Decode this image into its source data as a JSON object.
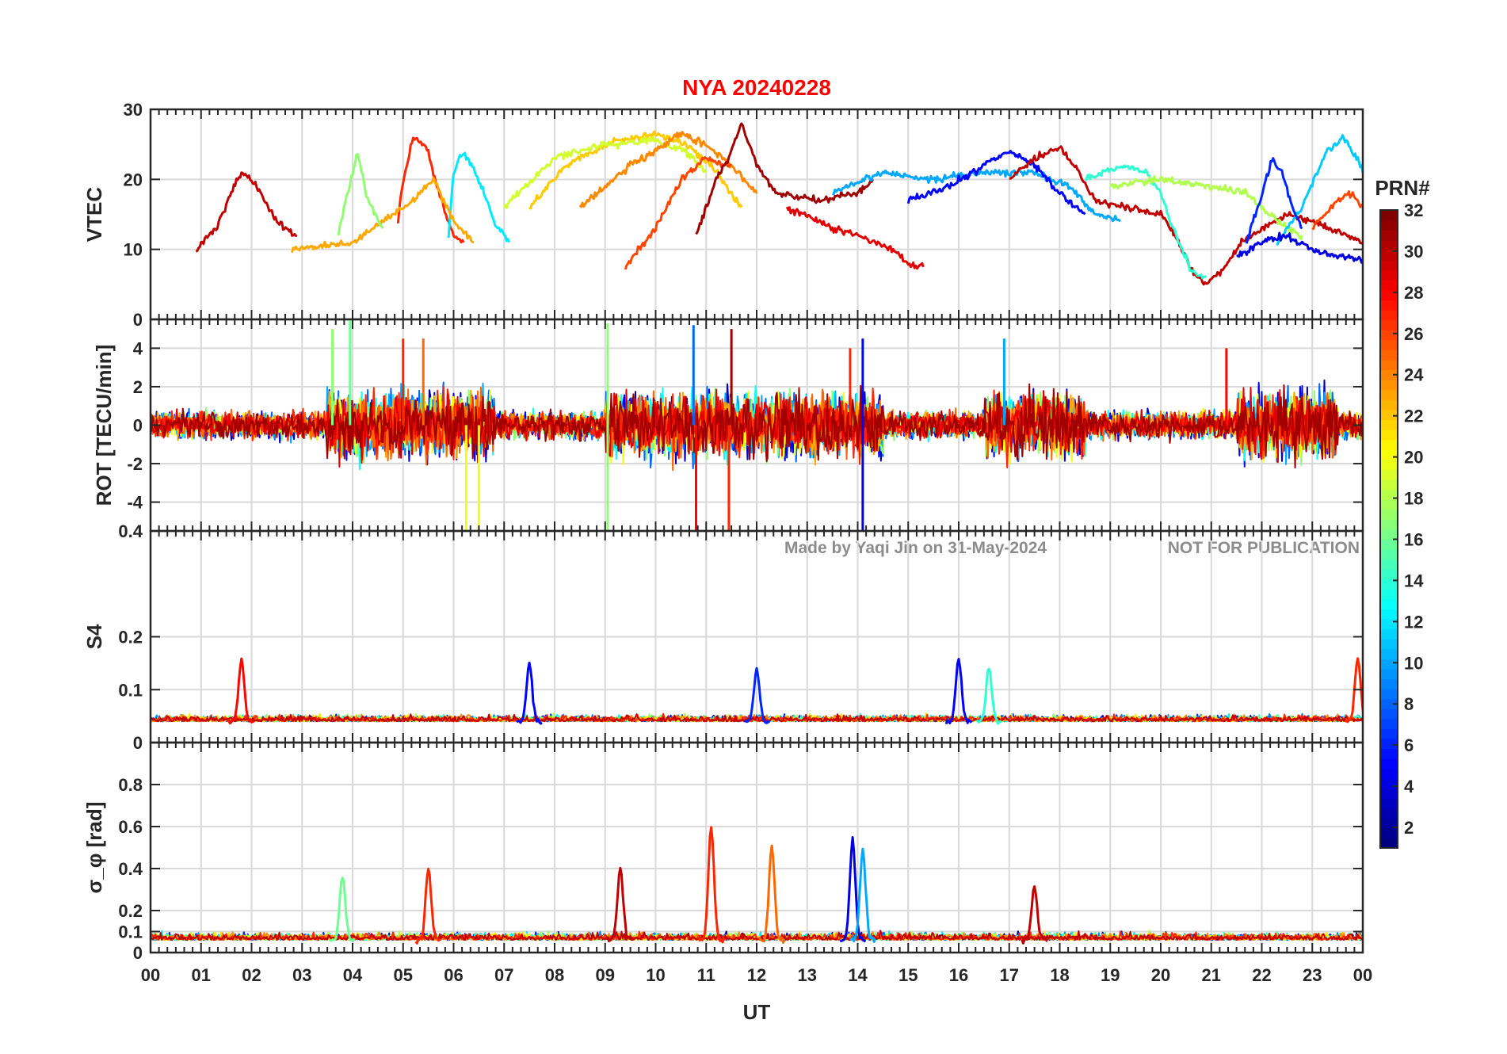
{
  "chart_data": {
    "type": "line",
    "title": "NYA   20240228",
    "xlabel": "UT",
    "xlim": [
      0,
      24
    ],
    "x_ticks": [
      "00",
      "01",
      "02",
      "03",
      "04",
      "05",
      "06",
      "07",
      "08",
      "09",
      "10",
      "11",
      "12",
      "13",
      "14",
      "15",
      "16",
      "17",
      "18",
      "19",
      "20",
      "21",
      "22",
      "23",
      "00"
    ],
    "grid": true,
    "watermark": "Made by Yaqi Jin on 31-May-2024",
    "notice": "NOT FOR PUBLICATION",
    "colorbar": {
      "label": "PRN#",
      "range": [
        1,
        32
      ],
      "colormap": "jet",
      "tick_labels": [
        "2",
        "4",
        "6",
        "8",
        "10",
        "12",
        "14",
        "16",
        "18",
        "20",
        "22",
        "24",
        "26",
        "28",
        "30",
        "32"
      ]
    },
    "panels": [
      {
        "id": "vtec",
        "ylabel": "VTEC",
        "ylim": [
          0,
          30
        ],
        "y_ticks": [
          "0",
          "10",
          "20",
          "30"
        ],
        "series": [
          {
            "prn": 30,
            "points": [
              [
                0.9,
                10
              ],
              [
                1.3,
                13
              ],
              [
                1.6,
                18
              ],
              [
                1.8,
                21
              ],
              [
                2.1,
                19
              ],
              [
                2.5,
                14
              ],
              [
                2.9,
                12
              ]
            ]
          },
          {
            "prn": 27,
            "points": [
              [
                4.9,
                14
              ],
              [
                5.0,
                20
              ],
              [
                5.2,
                26
              ],
              [
                5.45,
                25
              ],
              [
                5.6,
                21
              ],
              [
                5.8,
                16
              ],
              [
                6.0,
                12
              ],
              [
                6.2,
                11
              ]
            ]
          },
          {
            "prn": 12,
            "points": [
              [
                5.9,
                12
              ],
              [
                6.0,
                21
              ],
              [
                6.2,
                24
              ],
              [
                6.5,
                20
              ],
              [
                6.8,
                14
              ],
              [
                7.1,
                11
              ]
            ]
          },
          {
            "prn": 23,
            "points": [
              [
                2.8,
                10
              ],
              [
                4.0,
                11
              ],
              [
                5.2,
                17
              ],
              [
                5.6,
                20
              ],
              [
                6.0,
                14
              ],
              [
                6.4,
                11
              ]
            ]
          },
          {
            "prn": 17,
            "points": [
              [
                3.7,
                12
              ],
              [
                3.9,
                18
              ],
              [
                4.1,
                24
              ],
              [
                4.3,
                17
              ],
              [
                4.6,
                13
              ]
            ]
          },
          {
            "prn": 22,
            "points": [
              [
                7.5,
                16
              ],
              [
                8.2,
                22
              ],
              [
                9.2,
                25.5
              ],
              [
                10.0,
                26.5
              ],
              [
                10.6,
                25
              ],
              [
                11.1,
                22
              ],
              [
                11.7,
                16
              ]
            ]
          },
          {
            "prn": 19,
            "points": [
              [
                7.0,
                16
              ],
              [
                8.0,
                23
              ],
              [
                9.0,
                25
              ],
              [
                10.0,
                25.5
              ],
              [
                10.6,
                24
              ],
              [
                11.0,
                21
              ]
            ]
          },
          {
            "prn": 24,
            "points": [
              [
                8.5,
                16
              ],
              [
                9.5,
                22
              ],
              [
                10.0,
                24
              ],
              [
                10.5,
                26.5
              ],
              [
                11.0,
                25
              ],
              [
                11.5,
                22
              ],
              [
                12.0,
                18
              ]
            ]
          },
          {
            "prn": 26,
            "points": [
              [
                9.4,
                7.5
              ],
              [
                10.0,
                13
              ],
              [
                10.5,
                20
              ],
              [
                11.0,
                23
              ],
              [
                11.5,
                22
              ]
            ]
          },
          {
            "prn": 31,
            "points": [
              [
                10.8,
                12
              ],
              [
                11.2,
                20
              ],
              [
                11.5,
                24
              ],
              [
                11.7,
                28
              ],
              [
                12.0,
                22
              ],
              [
                12.4,
                18
              ],
              [
                13.2,
                17
              ],
              [
                14.0,
                18
              ],
              [
                14.3,
                20
              ]
            ]
          },
          {
            "prn": 29,
            "points": [
              [
                12.6,
                16
              ],
              [
                13.5,
                13
              ],
              [
                14.0,
                12
              ],
              [
                14.7,
                10
              ],
              [
                15.0,
                8
              ],
              [
                15.3,
                7.5
              ]
            ]
          },
          {
            "prn": 10,
            "points": [
              [
                13.5,
                18
              ],
              [
                14.5,
                21
              ],
              [
                15.5,
                20
              ],
              [
                16.5,
                21
              ],
              [
                17.5,
                21
              ],
              [
                18.2,
                19
              ],
              [
                18.7,
                15
              ],
              [
                19.2,
                14
              ]
            ]
          },
          {
            "prn": 5,
            "points": [
              [
                15.0,
                17
              ],
              [
                15.8,
                19
              ],
              [
                16.5,
                22
              ],
              [
                17.0,
                24
              ],
              [
                17.5,
                22
              ],
              [
                18.0,
                18
              ],
              [
                18.5,
                15
              ]
            ]
          },
          {
            "prn": 30,
            "points": [
              [
                17.0,
                20
              ],
              [
                17.5,
                23
              ],
              [
                18.0,
                24.5
              ],
              [
                18.3,
                22
              ],
              [
                18.7,
                17
              ],
              [
                19.3,
                16
              ],
              [
                20.0,
                15
              ],
              [
                20.3,
                12
              ],
              [
                20.6,
                7
              ],
              [
                20.9,
                5
              ],
              [
                21.2,
                7
              ],
              [
                21.6,
                11
              ],
              [
                22.0,
                13
              ],
              [
                22.5,
                15
              ],
              [
                23.0,
                14
              ],
              [
                24.0,
                11
              ]
            ]
          },
          {
            "prn": 14,
            "points": [
              [
                18.5,
                20
              ],
              [
                19.2,
                22
              ],
              [
                19.7,
                21
              ],
              [
                20.0,
                18
              ],
              [
                20.3,
                12
              ],
              [
                20.6,
                7
              ],
              [
                20.9,
                6
              ]
            ]
          },
          {
            "prn": 18,
            "points": [
              [
                19.0,
                19
              ],
              [
                20.0,
                20
              ],
              [
                21.0,
                19
              ],
              [
                21.7,
                18
              ],
              [
                22.3,
                14
              ],
              [
                22.8,
                12
              ]
            ]
          },
          {
            "prn": 11,
            "points": [
              [
                22.3,
                11
              ],
              [
                22.8,
                16
              ],
              [
                23.1,
                21
              ],
              [
                23.3,
                24
              ],
              [
                23.6,
                26
              ],
              [
                23.9,
                23
              ],
              [
                24.0,
                21
              ]
            ]
          },
          {
            "prn": 26,
            "points": [
              [
                23.0,
                13
              ],
              [
                23.5,
                17
              ],
              [
                23.8,
                18
              ],
              [
                24.0,
                16
              ]
            ]
          },
          {
            "prn": 4,
            "points": [
              [
                21.5,
                9
              ],
              [
                22.0,
                11
              ],
              [
                22.5,
                12
              ],
              [
                23.0,
                10
              ],
              [
                23.5,
                9
              ],
              [
                24.0,
                8.5
              ]
            ]
          },
          {
            "prn": 6,
            "points": [
              [
                21.7,
                11
              ],
              [
                22.0,
                18
              ],
              [
                22.2,
                23
              ],
              [
                22.4,
                21
              ],
              [
                22.6,
                16
              ],
              [
                22.8,
                13
              ]
            ]
          }
        ]
      },
      {
        "id": "rot",
        "ylabel": "ROT [TECU/min]",
        "ylim": [
          -5.5,
          5.5
        ],
        "y_ticks": [
          "-4",
          "-2",
          "0",
          "2",
          "4"
        ],
        "spikes": [
          {
            "prn": 17,
            "t": 3.6,
            "value": 5
          },
          {
            "prn": 16,
            "t": 3.95,
            "value": 5.5
          },
          {
            "prn": 27,
            "t": 5.0,
            "value": 4.5
          },
          {
            "prn": 25,
            "t": 5.4,
            "value": 4.5
          },
          {
            "prn": 20,
            "t": 6.25,
            "value": -5.5
          },
          {
            "prn": 20,
            "t": 6.5,
            "value": -5.5
          },
          {
            "prn": 17,
            "t": 9.05,
            "value": 5.3
          },
          {
            "prn": 17,
            "t": 9.05,
            "value": -5.5
          },
          {
            "prn": 8,
            "t": 10.75,
            "value": 5.2
          },
          {
            "prn": 28,
            "t": 10.8,
            "value": -5.5
          },
          {
            "prn": 27,
            "t": 11.45,
            "value": -5.5
          },
          {
            "prn": 31,
            "t": 11.5,
            "value": 5.0
          },
          {
            "prn": 27,
            "t": 13.85,
            "value": 4.0
          },
          {
            "prn": 5,
            "t": 14.1,
            "value": 4.5
          },
          {
            "prn": 4,
            "t": 14.1,
            "value": -5.5
          },
          {
            "prn": 28,
            "t": 21.3,
            "value": 4.0
          },
          {
            "prn": 10,
            "t": 16.9,
            "value": 4.5
          }
        ]
      },
      {
        "id": "s4",
        "ylabel": "S4",
        "ylim": [
          0,
          0.4
        ],
        "y_ticks": [
          "0",
          "0.1",
          "0.2",
          "0.4"
        ],
        "peaks": [
          {
            "prn": 28,
            "t": 1.8,
            "value": 0.16
          },
          {
            "prn": 5,
            "t": 7.5,
            "value": 0.15
          },
          {
            "prn": 6,
            "t": 12.0,
            "value": 0.14
          },
          {
            "prn": 5,
            "t": 16.0,
            "value": 0.16
          },
          {
            "prn": 14,
            "t": 16.6,
            "value": 0.14
          },
          {
            "prn": 27,
            "t": 23.9,
            "value": 0.16
          }
        ]
      },
      {
        "id": "sigma_phi",
        "ylabel": "σ_φ [rad]",
        "ylim": [
          0,
          1.0
        ],
        "y_ticks": [
          "0",
          "0.1",
          "0.2",
          "0.4",
          "0.6",
          "0.8"
        ],
        "peaks": [
          {
            "prn": 16,
            "t": 3.8,
            "value": 0.37
          },
          {
            "prn": 27,
            "t": 5.5,
            "value": 0.4
          },
          {
            "prn": 30,
            "t": 9.3,
            "value": 0.4
          },
          {
            "prn": 27,
            "t": 11.1,
            "value": 0.6
          },
          {
            "prn": 25,
            "t": 12.3,
            "value": 0.5
          },
          {
            "prn": 4,
            "t": 13.9,
            "value": 0.53
          },
          {
            "prn": 10,
            "t": 14.1,
            "value": 0.48
          },
          {
            "prn": 30,
            "t": 17.5,
            "value": 0.31
          }
        ]
      }
    ]
  }
}
